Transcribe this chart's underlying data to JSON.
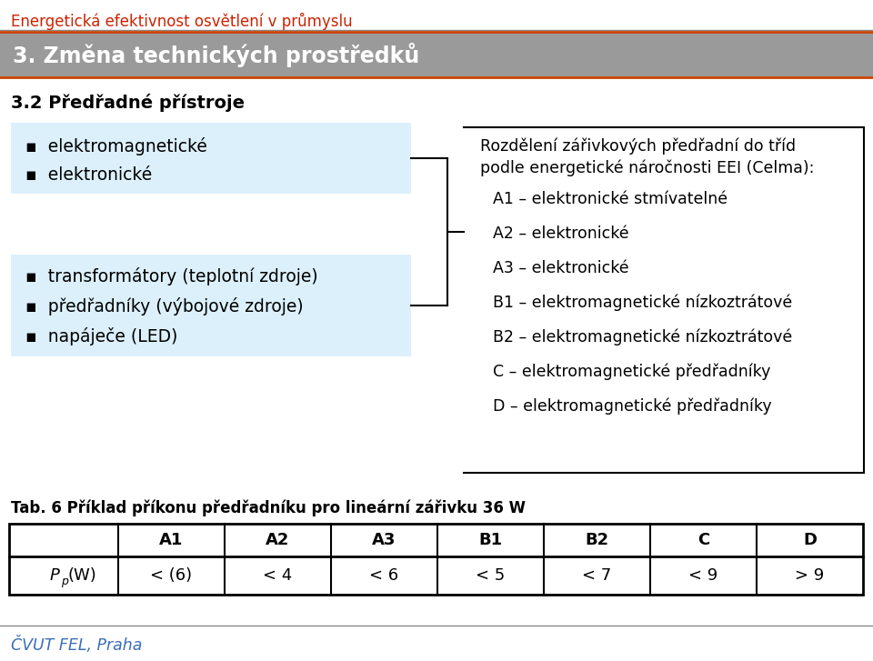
{
  "title_top": "Energetická efektivnost osvětlení v průmyslu",
  "title_top_color": "#CC2200",
  "section_header": "3. Změna technických prostředků",
  "section_header_bg": "#9A9A9A",
  "section_header_color": "#FFFFFF",
  "section_header_border": "#CC4400",
  "subsection_title": "3.2 Předřadné přístroje",
  "subsection_title_color": "#000000",
  "box1_items": [
    "elektromagnetické",
    "elektronické"
  ],
  "box2_items": [
    "transformátory (teplotní zdroje)",
    "předřadníky (výbojové zdroje)",
    "napáječe (LED)"
  ],
  "box_bg": "#DCF0FB",
  "right_title_line1": "Rozdělení zářivkových předřadní do tříd",
  "right_title_line2": "podle energetické náročnosti EEI (Celma):",
  "right_items": [
    "A1 – elektronické stmívatelné",
    "A2 – elektronické",
    "A3 – elektronické",
    "B1 – elektromagnetické nízkoztrátové",
    "B2 – elektromagnetické nízkoztrátové",
    "C – elektromagnetické předřadníky",
    "D – elektromagnetické předřadníky"
  ],
  "table_caption": "Tab. 6 Příklad příkonu předřadníku pro lineární zářivku 36 W",
  "table_headers": [
    "",
    "A1",
    "A2",
    "A3",
    "B1",
    "B2",
    "C",
    "D"
  ],
  "table_row_values": [
    "< (6)",
    "< 4",
    "< 6",
    "< 5",
    "< 7",
    "< 9",
    "> 9"
  ],
  "footer_text": "ČVUT FEL, Praha",
  "footer_color": "#3B6EB5",
  "bg_color": "#FFFFFF",
  "line_color": "#555555"
}
